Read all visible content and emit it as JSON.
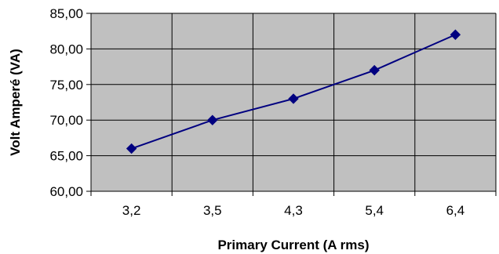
{
  "chart_data": {
    "type": "line",
    "title": "",
    "xlabel": "Primary Current (A rms)",
    "ylabel": "Volt Amperé (VA)",
    "categories": [
      "3,2",
      "3,5",
      "4,3",
      "5,4",
      "6,4"
    ],
    "series": [
      {
        "values": [
          66.0,
          70.0,
          73.0,
          77.0,
          82.0
        ]
      }
    ],
    "ylim": [
      60,
      85
    ],
    "yticks": [
      60,
      65,
      70,
      75,
      80,
      85
    ],
    "ytick_labels": [
      "60,00",
      "65,00",
      "70,00",
      "75,00",
      "80,00",
      "85,00"
    ],
    "grid": true,
    "legend": "none",
    "colors": {
      "plot_background": "#c0c0c0",
      "line": "#000080",
      "marker": "#000080",
      "grid": "#000000"
    },
    "marker": "diamond"
  }
}
